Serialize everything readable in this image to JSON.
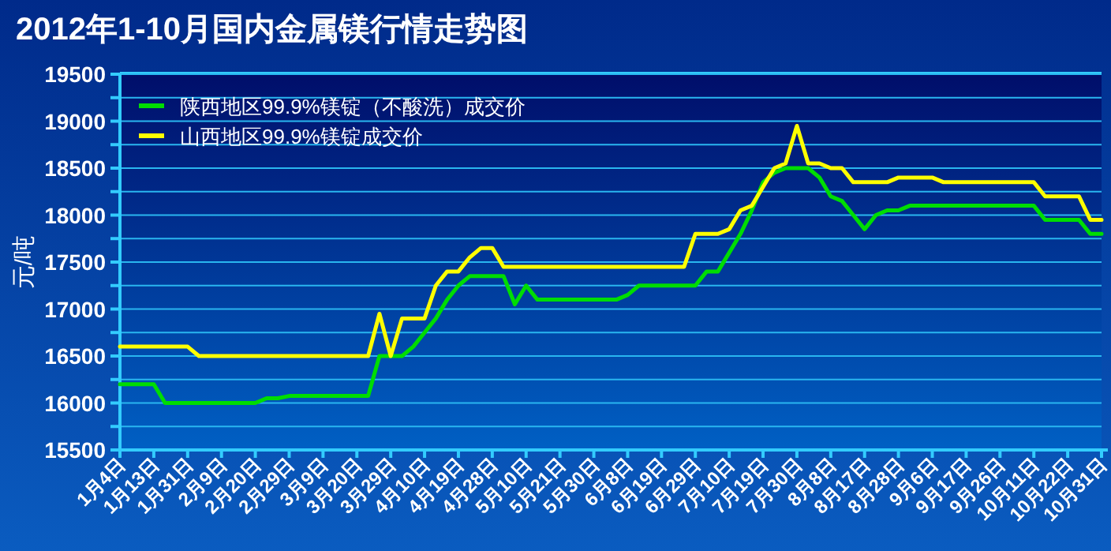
{
  "chart_data": {
    "type": "line",
    "title": "2012年1-10月国内金属镁行情走势图",
    "ylabel": "元/吨",
    "categories": [
      "1月4日",
      null,
      null,
      "1月13日",
      null,
      null,
      "1月31日",
      null,
      null,
      "2月9日",
      null,
      null,
      "2月20日",
      null,
      null,
      "2月29日",
      null,
      null,
      "3月9日",
      null,
      null,
      "3月20日",
      null,
      null,
      "3月29日",
      null,
      null,
      "4月10日",
      null,
      null,
      "4月19日",
      null,
      null,
      "4月28日",
      null,
      null,
      "5月10日",
      null,
      null,
      "5月21日",
      null,
      null,
      "5月30日",
      null,
      null,
      "6月8日",
      null,
      null,
      "6月19日",
      null,
      null,
      "6月29日",
      null,
      null,
      "7月10日",
      null,
      null,
      "7月19日",
      null,
      null,
      "7月30日",
      null,
      null,
      "8月8日",
      null,
      null,
      "8月17日",
      null,
      null,
      "8月28日",
      null,
      null,
      "9月6日",
      null,
      null,
      "9月17日",
      null,
      null,
      "9月26日",
      null,
      null,
      "10月11日",
      null,
      null,
      "10月22日",
      null,
      null,
      "10月31日"
    ],
    "series": [
      {
        "name": "陕西地区99.9%镁锭（不酸洗）成交价",
        "color": "#00dd00",
        "values": [
          16200,
          16200,
          16200,
          16200,
          16000,
          16000,
          16000,
          16000,
          16000,
          16000,
          16000,
          16000,
          16000,
          16050,
          16050,
          16075,
          16075,
          16075,
          16075,
          16075,
          16075,
          16075,
          16075,
          16500,
          16500,
          16500,
          16600,
          16750,
          16900,
          17100,
          17250,
          17350,
          17350,
          17350,
          17350,
          17050,
          17250,
          17100,
          17100,
          17100,
          17100,
          17100,
          17100,
          17100,
          17100,
          17150,
          17250,
          17250,
          17250,
          17250,
          17250,
          17250,
          17400,
          17400,
          17600,
          17800,
          18050,
          18350,
          18450,
          18500,
          18500,
          18500,
          18400,
          18200,
          18150,
          18000,
          17850,
          18000,
          18050,
          18050,
          18100,
          18100,
          18100,
          18100,
          18100,
          18100,
          18100,
          18100,
          18100,
          18100,
          18100,
          18100,
          17950,
          17950,
          17950,
          17950,
          17800,
          17800
        ]
      },
      {
        "name": "山西地区99.9%镁锭成交价",
        "color": "#ffff00",
        "values": [
          16600,
          16600,
          16600,
          16600,
          16600,
          16600,
          16600,
          16500,
          16500,
          16500,
          16500,
          16500,
          16500,
          16500,
          16500,
          16500,
          16500,
          16500,
          16500,
          16500,
          16500,
          16500,
          16500,
          16950,
          16500,
          16900,
          16900,
          16900,
          17250,
          17400,
          17400,
          17550,
          17650,
          17650,
          17450,
          17450,
          17450,
          17450,
          17450,
          17450,
          17450,
          17450,
          17450,
          17450,
          17450,
          17450,
          17450,
          17450,
          17450,
          17450,
          17450,
          17800,
          17800,
          17800,
          17850,
          18050,
          18100,
          18300,
          18500,
          18550,
          18950,
          18550,
          18550,
          18500,
          18500,
          18350,
          18350,
          18350,
          18350,
          18400,
          18400,
          18400,
          18400,
          18350,
          18350,
          18350,
          18350,
          18350,
          18350,
          18350,
          18350,
          18350,
          18200,
          18200,
          18200,
          18200,
          17950,
          17950
        ]
      }
    ],
    "ylim": [
      15500,
      19500
    ],
    "yticks": [
      15500,
      {
        "value": 15750,
        "label": null
      },
      16000,
      {
        "value": 16250,
        "label": null
      },
      16500,
      {
        "value": 16750,
        "label": null
      },
      17000,
      {
        "value": 17250,
        "label": null
      },
      17500,
      {
        "value": 17750,
        "label": null
      },
      18000,
      {
        "value": 18250,
        "label": null
      },
      18500,
      {
        "value": 18750,
        "label": null
      },
      19000,
      {
        "value": 19250,
        "label": null
      },
      19500
    ],
    "grid": "y",
    "legend": "top left"
  }
}
